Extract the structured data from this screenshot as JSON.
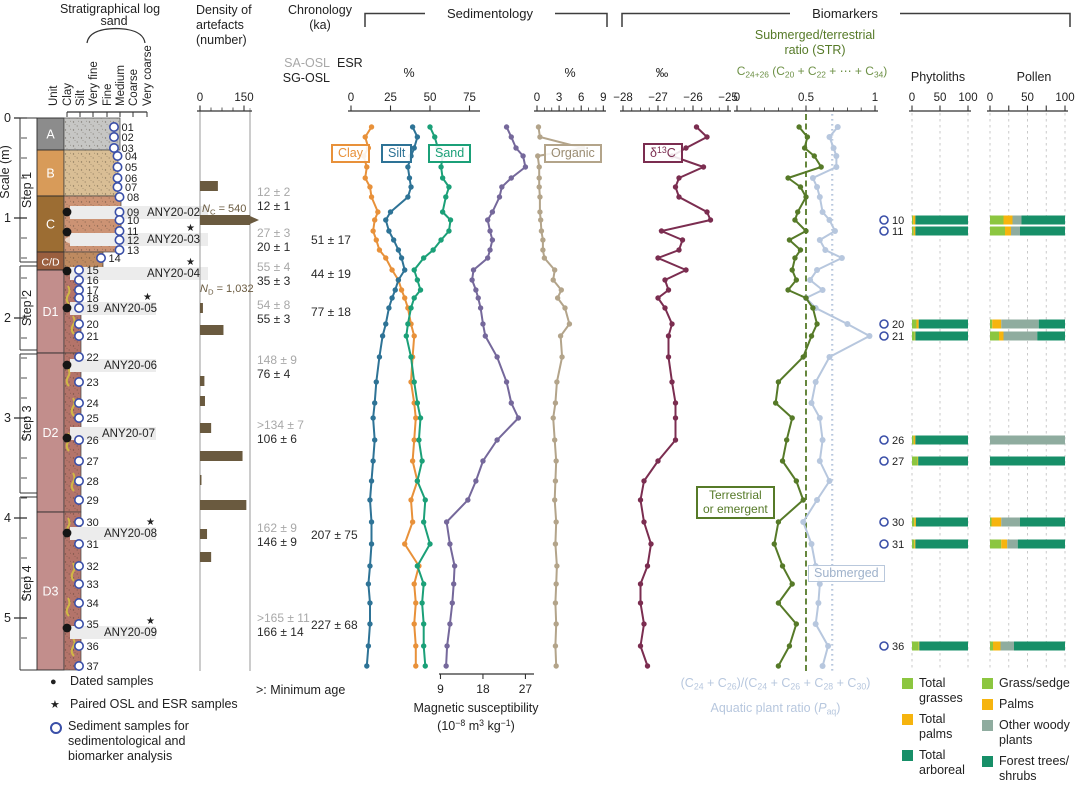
{
  "header": {
    "strat_title": "Stratigraphical log",
    "sand_label": "sand",
    "scale_label": "Scale (m)",
    "density_title": "Density of\nartefacts\n(number)",
    "chron_title": "Chronology\n(ka)",
    "sa_osl": "SA-OSL",
    "sg_osl": "SG-OSL",
    "esr": "ESR",
    "sed_title": "Sedimentology",
    "bio_title": "Biomarkers",
    "pct_grain": "%",
    "pct_org": "%",
    "permil": "‰",
    "str_title": "Submerged/terrestrial\nratio (STR)",
    "str_formula": [
      {
        "t": "C"
      },
      {
        "t": "24+26",
        "v": "sub"
      },
      {
        "t": " (C"
      },
      {
        "t": "20",
        "v": "sub"
      },
      {
        "t": " + C"
      },
      {
        "t": "22",
        "v": "sub"
      },
      {
        "t": " + ⋯ + C"
      },
      {
        "t": "34",
        "v": "sub"
      },
      {
        "t": ")"
      }
    ],
    "phyto_title": "Phytoliths",
    "pollen_title": "Pollen"
  },
  "grain_labels": [
    "Unit",
    "Clay",
    "Silt",
    "Very fine",
    "Fine",
    "Medium",
    "Coarse",
    "Very coarse"
  ],
  "scale_ticks": [
    0,
    1,
    2,
    3,
    4,
    5
  ],
  "steps": [
    {
      "label": "Step 1",
      "top_m": 0.0,
      "bot_m": 1.44
    },
    {
      "label": "Step 2",
      "top_m": 1.48,
      "bot_m": 2.32
    },
    {
      "label": "Step 3",
      "top_m": 2.36,
      "bot_m": 3.75
    },
    {
      "label": "Step 4",
      "top_m": 3.79,
      "bot_m": 5.52
    }
  ],
  "units": [
    {
      "label": "A",
      "top_m": 0.0,
      "bot_m": 0.32,
      "block": "#8C8C8C",
      "tex": "#C6C6C4",
      "gx": 120
    },
    {
      "label": "B",
      "top_m": 0.32,
      "bot_m": 0.78,
      "block": "#D89B59",
      "tex": "#D9BE95",
      "gx": 118
    },
    {
      "label": "C",
      "top_m": 0.78,
      "bot_m": 1.34,
      "block": "#9C6D33",
      "tex": "#CC9374",
      "gx": 121
    },
    {
      "label": "C/D",
      "top_m": 1.34,
      "bot_m": 1.52,
      "block": "#9A5F3F",
      "tex": "#BE8A60",
      "gx": 103
    },
    {
      "label": "D1",
      "top_m": 1.52,
      "bot_m": 2.35,
      "block": "#C28E8C",
      "tex": "#B4746A",
      "gx": 81
    },
    {
      "label": "D2",
      "top_m": 2.35,
      "bot_m": 3.94,
      "block": "#C28E8C",
      "tex": "#B4746A",
      "gx": 81
    },
    {
      "label": "D3",
      "top_m": 3.94,
      "bot_m": 5.52,
      "block": "#C28E8C",
      "tex": "#B4746A",
      "gx": 81
    }
  ],
  "samples": [
    {
      "id": "01",
      "depth_m": 0.09
    },
    {
      "id": "02",
      "depth_m": 0.19
    },
    {
      "id": "03",
      "depth_m": 0.3
    },
    {
      "id": "04",
      "depth_m": 0.38
    },
    {
      "id": "05",
      "depth_m": 0.49
    },
    {
      "id": "06",
      "depth_m": 0.6
    },
    {
      "id": "07",
      "depth_m": 0.69
    },
    {
      "id": "08",
      "depth_m": 0.79
    },
    {
      "id": "09",
      "depth_m": 0.94
    },
    {
      "id": "10",
      "depth_m": 1.02
    },
    {
      "id": "11",
      "depth_m": 1.13
    },
    {
      "id": "12",
      "depth_m": 1.22
    },
    {
      "id": "13",
      "depth_m": 1.32
    },
    {
      "id": "14",
      "depth_m": 1.4
    },
    {
      "id": "15",
      "depth_m": 1.52
    },
    {
      "id": "16",
      "depth_m": 1.62
    },
    {
      "id": "17",
      "depth_m": 1.72
    },
    {
      "id": "18",
      "depth_m": 1.8
    },
    {
      "id": "19",
      "depth_m": 1.9
    },
    {
      "id": "20",
      "depth_m": 2.06
    },
    {
      "id": "21",
      "depth_m": 2.18
    },
    {
      "id": "22",
      "depth_m": 2.39
    },
    {
      "id": "23",
      "depth_m": 2.64
    },
    {
      "id": "24",
      "depth_m": 2.85
    },
    {
      "id": "25",
      "depth_m": 3.0
    },
    {
      "id": "26",
      "depth_m": 3.22
    },
    {
      "id": "27",
      "depth_m": 3.43
    },
    {
      "id": "28",
      "depth_m": 3.63
    },
    {
      "id": "29",
      "depth_m": 3.82
    },
    {
      "id": "30",
      "depth_m": 4.04
    },
    {
      "id": "31",
      "depth_m": 4.26
    },
    {
      "id": "32",
      "depth_m": 4.48
    },
    {
      "id": "33",
      "depth_m": 4.66
    },
    {
      "id": "34",
      "depth_m": 4.85
    },
    {
      "id": "35",
      "depth_m": 5.06
    },
    {
      "id": "36",
      "depth_m": 5.28
    },
    {
      "id": "37",
      "depth_m": 5.48
    }
  ],
  "dated": [
    {
      "label": "ANY20-02",
      "depth_m": 0.94,
      "star": false
    },
    {
      "label": "ANY20-03",
      "depth_m": 1.14,
      "star": true
    },
    {
      "label": "ANY20-04",
      "depth_m": 1.53,
      "star": true
    },
    {
      "label": "ANY20-05",
      "depth_m": 1.9,
      "star": true
    },
    {
      "label": "ANY20-06",
      "depth_m": 2.47,
      "star": false
    },
    {
      "label": "ANY20-07",
      "depth_m": 3.2,
      "star": false
    },
    {
      "label": "ANY20-08",
      "depth_m": 4.15,
      "star": true
    },
    {
      "label": "ANY20-09",
      "depth_m": 5.1,
      "star": true
    }
  ],
  "density": {
    "nc": [
      {
        "t": "N",
        "i": true
      },
      {
        "t": "C",
        "v": "sub"
      },
      {
        "t": " = 540"
      }
    ],
    "nd": [
      {
        "t": "N",
        "i": true
      },
      {
        "t": "D",
        "v": "sub"
      },
      {
        "t": " = 1,032"
      }
    ]
  },
  "chronology": {
    "footnote": ">: Minimum age",
    "rows": [
      {
        "sa": "12 ± 2",
        "sg": "12 ± 1",
        "esr": "",
        "y_m": 0.78
      },
      {
        "sa": "27 ± 3",
        "sg": "20 ± 1",
        "esr": "51 ± 17",
        "y_m": 1.19
      },
      {
        "sa": "55 ± 4",
        "sg": "35 ± 3",
        "esr": "44 ± 19",
        "y_m": 1.53
      },
      {
        "sa": "54 ± 8",
        "sg": "55 ± 3",
        "esr": "77 ± 18",
        "y_m": 1.91
      },
      {
        "sa": "148 ± 9",
        "sg": "76 ± 4",
        "esr": "",
        "y_m": 2.46
      },
      {
        "sa": ">134 ± 7",
        "sg": "106 ± 6",
        "esr": "",
        "y_m": 3.11
      },
      {
        "sa": "162 ± 9",
        "sg": "146 ± 9",
        "esr": "207 ± 75",
        "y_m": 4.14
      },
      {
        "sa": ">165 ± 11",
        "sg": "166 ± 14",
        "esr": "227 ± 68",
        "y_m": 5.04
      }
    ]
  },
  "boxes": {
    "clay": "Clay",
    "silt": "Silt",
    "sand": "Sand",
    "organic": "Organic",
    "d13c": [
      {
        "t": "δ"
      },
      {
        "t": "13",
        "v": "sup"
      },
      {
        "t": "C"
      }
    ],
    "terrestrial": "Terrestrial\nor emergent",
    "submerged": "Submerged"
  },
  "magsus": {
    "label": "Magnetic susceptibility",
    "unit": [
      {
        "t": "(10"
      },
      {
        "t": "−8",
        "v": "sup"
      },
      {
        "t": " m"
      },
      {
        "t": "3",
        "v": "sup"
      },
      {
        "t": " kg"
      },
      {
        "t": "−1",
        "v": "sup"
      },
      {
        "t": ")"
      }
    ]
  },
  "paq": {
    "formula": [
      {
        "t": "(C"
      },
      {
        "t": "24",
        "v": "sub"
      },
      {
        "t": " + C"
      },
      {
        "t": "26",
        "v": "sub"
      },
      {
        "t": ")/(C"
      },
      {
        "t": "24",
        "v": "sub"
      },
      {
        "t": " + C"
      },
      {
        "t": "26",
        "v": "sub"
      },
      {
        "t": " + C"
      },
      {
        "t": "28",
        "v": "sub"
      },
      {
        "t": " + C"
      },
      {
        "t": "30",
        "v": "sub"
      },
      {
        "t": ")"
      }
    ],
    "label": [
      {
        "t": "Aquatic plant ratio ("
      },
      {
        "t": "P",
        "i": true
      },
      {
        "t": "aq",
        "v": "sub"
      },
      {
        "t": ")"
      }
    ]
  },
  "legend_left": [
    {
      "marker": "dot",
      "text": "Dated samples"
    },
    {
      "marker": "star",
      "text": "Paired OSL and ESR samples"
    },
    {
      "marker": "ring",
      "text": "Sediment samples for\nsedimentological and\nbiomarker analysis"
    }
  ],
  "legend_phyto": [
    {
      "color": "#8CC640",
      "text": "Total\ngrasses"
    },
    {
      "color": "#F6B40E",
      "text": "Total\npalms"
    },
    {
      "color": "#178F68",
      "text": "Total\narboreal"
    }
  ],
  "legend_pollen": [
    {
      "color": "#8CC640",
      "text": "Grass/sedge"
    },
    {
      "color": "#F6B40E",
      "text": "Palms"
    },
    {
      "color": "#8FAC9F",
      "text": "Other woody\nplants"
    },
    {
      "color": "#178F68",
      "text": "Forest trees/\nshrubs"
    }
  ],
  "colors": {
    "clay": "#E8913A",
    "silt": "#2E7396",
    "sand": "#1BA078",
    "magnetic": "#75689B",
    "organic": "#B3A48A",
    "d13c": "#7B2D50",
    "str": "#567A28",
    "paq": "#B7C7DE",
    "density": "#6A5A3F",
    "sample_ring": "#3A4FA8",
    "total_grasses": "#8CC640",
    "total_palms": "#F6B40E",
    "total_arboreal": "#178F68",
    "other_woody": "#8FAC9F",
    "accent_green": "#567A28",
    "accent_lightgreen": "#6E9147",
    "submerged_text": "#9FB2CB"
  },
  "chart_data": {
    "type": "multi-panel depth profiles",
    "depth_axis": {
      "label": "Scale (m)",
      "range": [
        0,
        5.52
      ]
    },
    "depth_m": [
      0.09,
      0.19,
      0.3,
      0.38,
      0.49,
      0.6,
      0.69,
      0.79,
      0.94,
      1.02,
      1.13,
      1.22,
      1.32,
      1.4,
      1.52,
      1.62,
      1.72,
      1.8,
      1.9,
      2.06,
      2.18,
      2.39,
      2.64,
      2.85,
      3.0,
      3.22,
      3.43,
      3.63,
      3.82,
      4.04,
      4.26,
      4.48,
      4.66,
      4.85,
      5.06,
      5.28,
      5.48
    ],
    "grain_size": {
      "type": "line",
      "xlabel": "%",
      "xlim": [
        0,
        80
      ],
      "xticks": [
        0,
        25,
        50,
        75
      ],
      "series": [
        {
          "name": "Clay",
          "values": [
            13,
            9,
            11,
            8,
            10,
            9,
            12,
            13,
            17,
            15,
            14,
            16,
            18,
            22,
            26,
            30,
            32,
            34,
            36,
            38,
            40,
            39,
            38,
            40,
            41,
            40,
            39,
            42,
            38,
            39,
            34,
            43,
            40,
            41,
            40,
            41,
            41
          ]
        },
        {
          "name": "Silt",
          "values": [
            39,
            42,
            40,
            38,
            36,
            37,
            38,
            36,
            25,
            22,
            24,
            27,
            30,
            32,
            34,
            30,
            28,
            26,
            24,
            22,
            20,
            18,
            16,
            15,
            14,
            15,
            14,
            13,
            12,
            13,
            13,
            12,
            11,
            12,
            12,
            11,
            10
          ]
        },
        {
          "name": "Sand",
          "values": [
            50,
            53,
            55,
            58,
            57,
            58,
            62,
            60,
            58,
            63,
            62,
            57,
            52,
            46,
            40,
            42,
            44,
            40,
            38,
            36,
            35,
            38,
            40,
            42,
            44,
            43,
            45,
            42,
            47,
            46,
            50,
            42,
            46,
            45,
            46,
            46,
            47
          ]
        }
      ]
    },
    "magnetic_susceptibility": {
      "type": "line",
      "xlabel": "Magnetic susceptibility (10^-8 m3 kg-1)",
      "xticks": [
        9,
        18,
        27
      ],
      "values": [
        23,
        24,
        25,
        26.5,
        27,
        24,
        22,
        21.5,
        20,
        19,
        19.5,
        20,
        19.5,
        19,
        16,
        15.7,
        16.5,
        17,
        17.5,
        18,
        18.5,
        21,
        23,
        24,
        25.5,
        21,
        18,
        16.5,
        14.8,
        10.3,
        11,
        12,
        11.8,
        11.5,
        11,
        10.4,
        10.2
      ]
    },
    "organic": {
      "type": "line",
      "xlabel": "%",
      "xlim": [
        0,
        9
      ],
      "xticks": [
        0,
        3,
        6,
        9
      ],
      "values": [
        0.2,
        0.4,
        6.2,
        0.1,
        0.3,
        0.3,
        0.3,
        0.4,
        0.4,
        0.5,
        0.6,
        0.8,
        0.8,
        1.0,
        2.4,
        2.2,
        3.3,
        2.8,
        3.8,
        4.4,
        3.2,
        3.4,
        2.7,
        2.5,
        2.2,
        2.4,
        2.6,
        2.5,
        2.4,
        2.6,
        2.5,
        2.7,
        2.6,
        2.5,
        2.6,
        2.5,
        2.6
      ]
    },
    "d13c": {
      "type": "line",
      "xlabel": "‰",
      "xlim": [
        -28,
        -25
      ],
      "xticks": [
        -28,
        -27,
        -26,
        -25
      ],
      "values": [
        -25.9,
        -25.6,
        -26.2,
        -26.6,
        -25.7,
        -26.4,
        -26.5,
        -26.4,
        -25.6,
        -25.5,
        -26.9,
        -26.3,
        -26.4,
        -27.0,
        -26.2,
        -26.8,
        -26.7,
        -27.0,
        -26.8,
        -26.6,
        -26.7,
        -26.7,
        -26.6,
        -26.5,
        -26.5,
        -26.5,
        -27.0,
        -27.4,
        -27.5,
        -27.4,
        -27.2,
        -27.3,
        -27.5,
        -27.5,
        -27.4,
        -27.5,
        -27.3
      ]
    },
    "str": {
      "type": "line",
      "xlim": [
        0,
        1
      ],
      "xticks": [
        0,
        0.5,
        1
      ],
      "reference": 0.5,
      "values": [
        0.45,
        0.51,
        0.49,
        0.56,
        0.61,
        0.37,
        0.46,
        0.5,
        0.44,
        0.42,
        0.5,
        0.38,
        0.46,
        0.42,
        0.4,
        0.43,
        0.37,
        0.5,
        0.55,
        0.58,
        0.54,
        0.48,
        0.3,
        0.28,
        0.4,
        0.36,
        0.33,
        0.43,
        0.48,
        0.3,
        0.27,
        0.33,
        0.4,
        0.3,
        0.43,
        0.38,
        0.3
      ]
    },
    "paq": {
      "type": "line",
      "xlim": [
        0,
        1
      ],
      "reference": 0.69,
      "values": [
        0.73,
        0.67,
        0.7,
        0.72,
        0.72,
        0.55,
        0.58,
        0.6,
        0.62,
        0.67,
        0.71,
        0.6,
        0.64,
        0.76,
        0.58,
        0.53,
        0.62,
        0.5,
        0.57,
        0.8,
        0.96,
        0.67,
        0.57,
        0.54,
        0.6,
        0.62,
        0.6,
        0.67,
        0.58,
        0.48,
        0.54,
        0.57,
        0.6,
        0.59,
        0.57,
        0.66,
        0.62
      ]
    },
    "phytoliths": {
      "type": "stacked-bar",
      "xlim": [
        0,
        100
      ],
      "xticks": [
        0,
        50,
        100
      ],
      "samples": [
        "10",
        "11",
        "20",
        "21",
        "26",
        "27",
        "30",
        "31",
        "36"
      ],
      "depths": [
        1.02,
        1.13,
        2.06,
        2.18,
        3.22,
        3.43,
        4.04,
        4.26,
        5.28
      ],
      "categories": [
        "Total grasses",
        "Total palms",
        "Total arboreal"
      ],
      "rows": [
        [
          2,
          4,
          94
        ],
        [
          3,
          3,
          94
        ],
        [
          8,
          4,
          88
        ],
        [
          5,
          1,
          94
        ],
        [
          3,
          3,
          94
        ],
        [
          10,
          1,
          89
        ],
        [
          4,
          3,
          93
        ],
        [
          4,
          2,
          94
        ],
        [
          12,
          1,
          87
        ]
      ]
    },
    "pollen": {
      "type": "stacked-bar",
      "xlim": [
        0,
        100
      ],
      "xticks": [
        0,
        25,
        50,
        75,
        100
      ],
      "samples": [
        "10",
        "11",
        "20",
        "21",
        "26",
        "27",
        "30",
        "31",
        "36"
      ],
      "depths": [
        1.02,
        1.13,
        2.06,
        2.18,
        3.22,
        3.43,
        4.04,
        4.26,
        5.28
      ],
      "categories": [
        "Grass/sedge",
        "Palms",
        "Other woody plants",
        "Forest trees/shrubs"
      ],
      "rows": [
        [
          18,
          12,
          12,
          58
        ],
        [
          20,
          8,
          12,
          60
        ],
        [
          3,
          12,
          50,
          35
        ],
        [
          12,
          6,
          45,
          37
        ],
        [
          0,
          0,
          100,
          0
        ],
        [
          0,
          0,
          0,
          100
        ],
        [
          2,
          13,
          25,
          60
        ],
        [
          15,
          8,
          14,
          63
        ],
        [
          4,
          10,
          18,
          68
        ]
      ]
    },
    "artefact_density": {
      "type": "bar",
      "xlim": [
        0,
        150
      ],
      "xticks": [
        0,
        150
      ],
      "rows": [
        {
          "depth_m": 0.68,
          "value": 61
        },
        {
          "depth_m": 1.02,
          "value": 540,
          "overflow": true
        },
        {
          "depth_m": 1.9,
          "value": 10
        },
        {
          "depth_m": 2.12,
          "value": 80
        },
        {
          "depth_m": 2.63,
          "value": 15
        },
        {
          "depth_m": 2.83,
          "value": 17
        },
        {
          "depth_m": 3.1,
          "value": 38
        },
        {
          "depth_m": 3.38,
          "value": 145
        },
        {
          "depth_m": 3.62,
          "value": 5
        },
        {
          "depth_m": 3.87,
          "value": 158
        },
        {
          "depth_m": 4.16,
          "value": 24
        },
        {
          "depth_m": 4.39,
          "value": 38
        }
      ]
    }
  }
}
